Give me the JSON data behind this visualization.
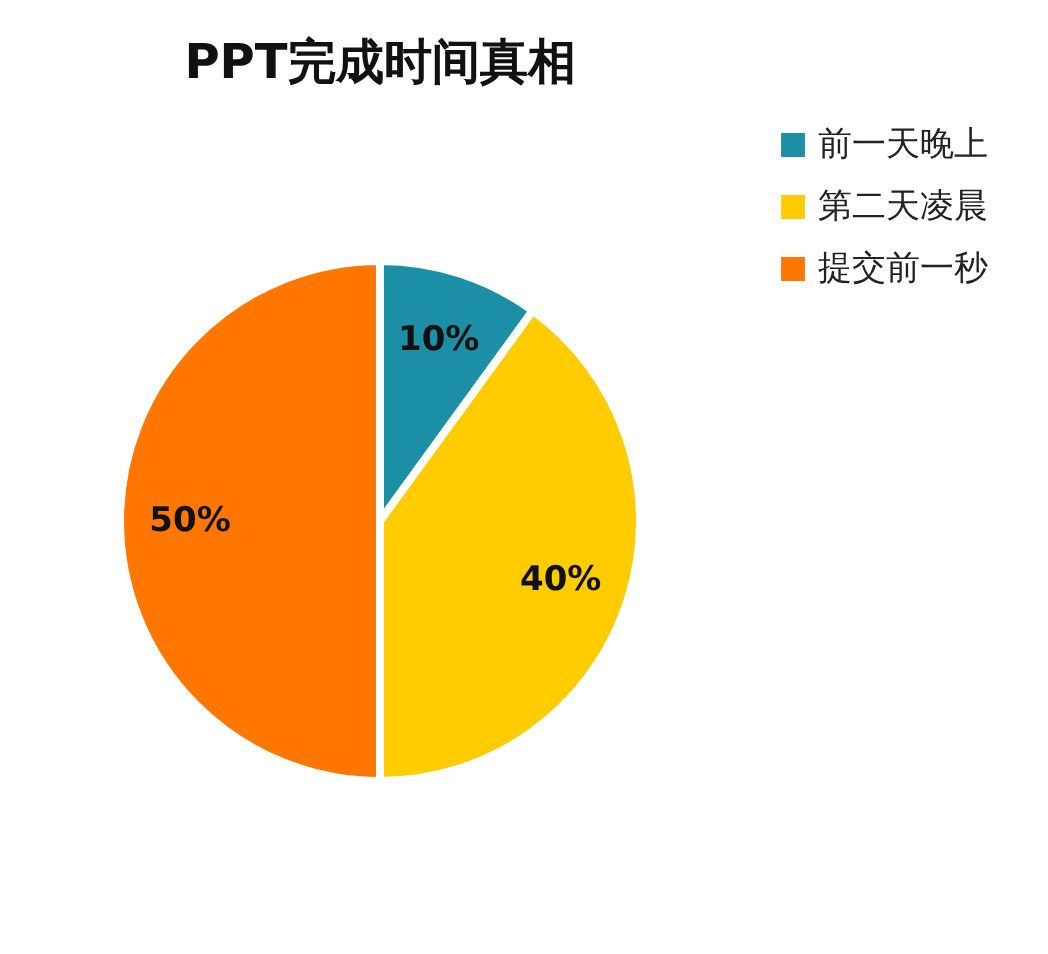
{
  "chart_data": {
    "type": "pie",
    "title": "PPT完成时间真相",
    "categories": [
      "前一天晚上",
      "第二天凌晨",
      "提交前一秒"
    ],
    "values": [
      10,
      40,
      50
    ],
    "colors": [
      "#1b8fa6",
      "#ffcc00",
      "#ff7700"
    ],
    "value_labels": [
      "10%",
      "40%",
      "50%"
    ],
    "legend": "right"
  }
}
